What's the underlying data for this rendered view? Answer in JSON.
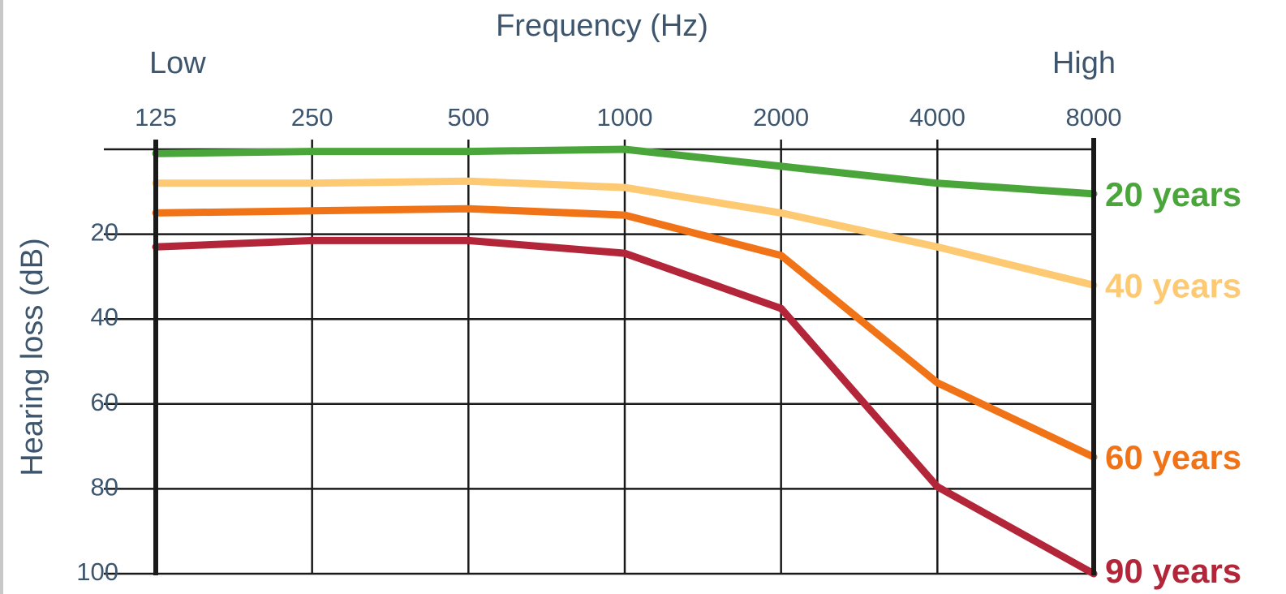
{
  "chart_data": {
    "type": "line",
    "xlabel": "Frequency (Hz)",
    "ylabel": "Hearing loss (dB)",
    "x_low_label": "Low",
    "x_high_label": "High",
    "x_scale": "log2",
    "x": [
      125,
      250,
      500,
      1000,
      2000,
      4000,
      8000
    ],
    "x_tick_labels": [
      "125",
      "250",
      "500",
      "1000",
      "2000",
      "4000",
      "8000"
    ],
    "y_ticks": [
      20,
      40,
      60,
      80,
      100
    ],
    "y_tick_labels": [
      "20",
      "40",
      "60",
      "80",
      "100"
    ],
    "ylim": [
      0,
      100
    ],
    "y_inverted": true,
    "grid": true,
    "legend": "right, labels at line ends",
    "series": [
      {
        "name": "20 years",
        "color": "#4aa63a",
        "values": [
          1,
          0.5,
          0.5,
          0,
          4,
          8,
          10.5
        ]
      },
      {
        "name": "40 years",
        "color": "#fdca73",
        "values": [
          8,
          8,
          7.5,
          9,
          15,
          23,
          32
        ]
      },
      {
        "name": "60 years",
        "color": "#f07417",
        "values": [
          15,
          14.5,
          14,
          15.5,
          25,
          55,
          72.5
        ]
      },
      {
        "name": "90 years",
        "color": "#b3263a",
        "values": [
          23,
          21.5,
          21.5,
          24.5,
          37.5,
          79.5,
          100
        ]
      }
    ]
  }
}
